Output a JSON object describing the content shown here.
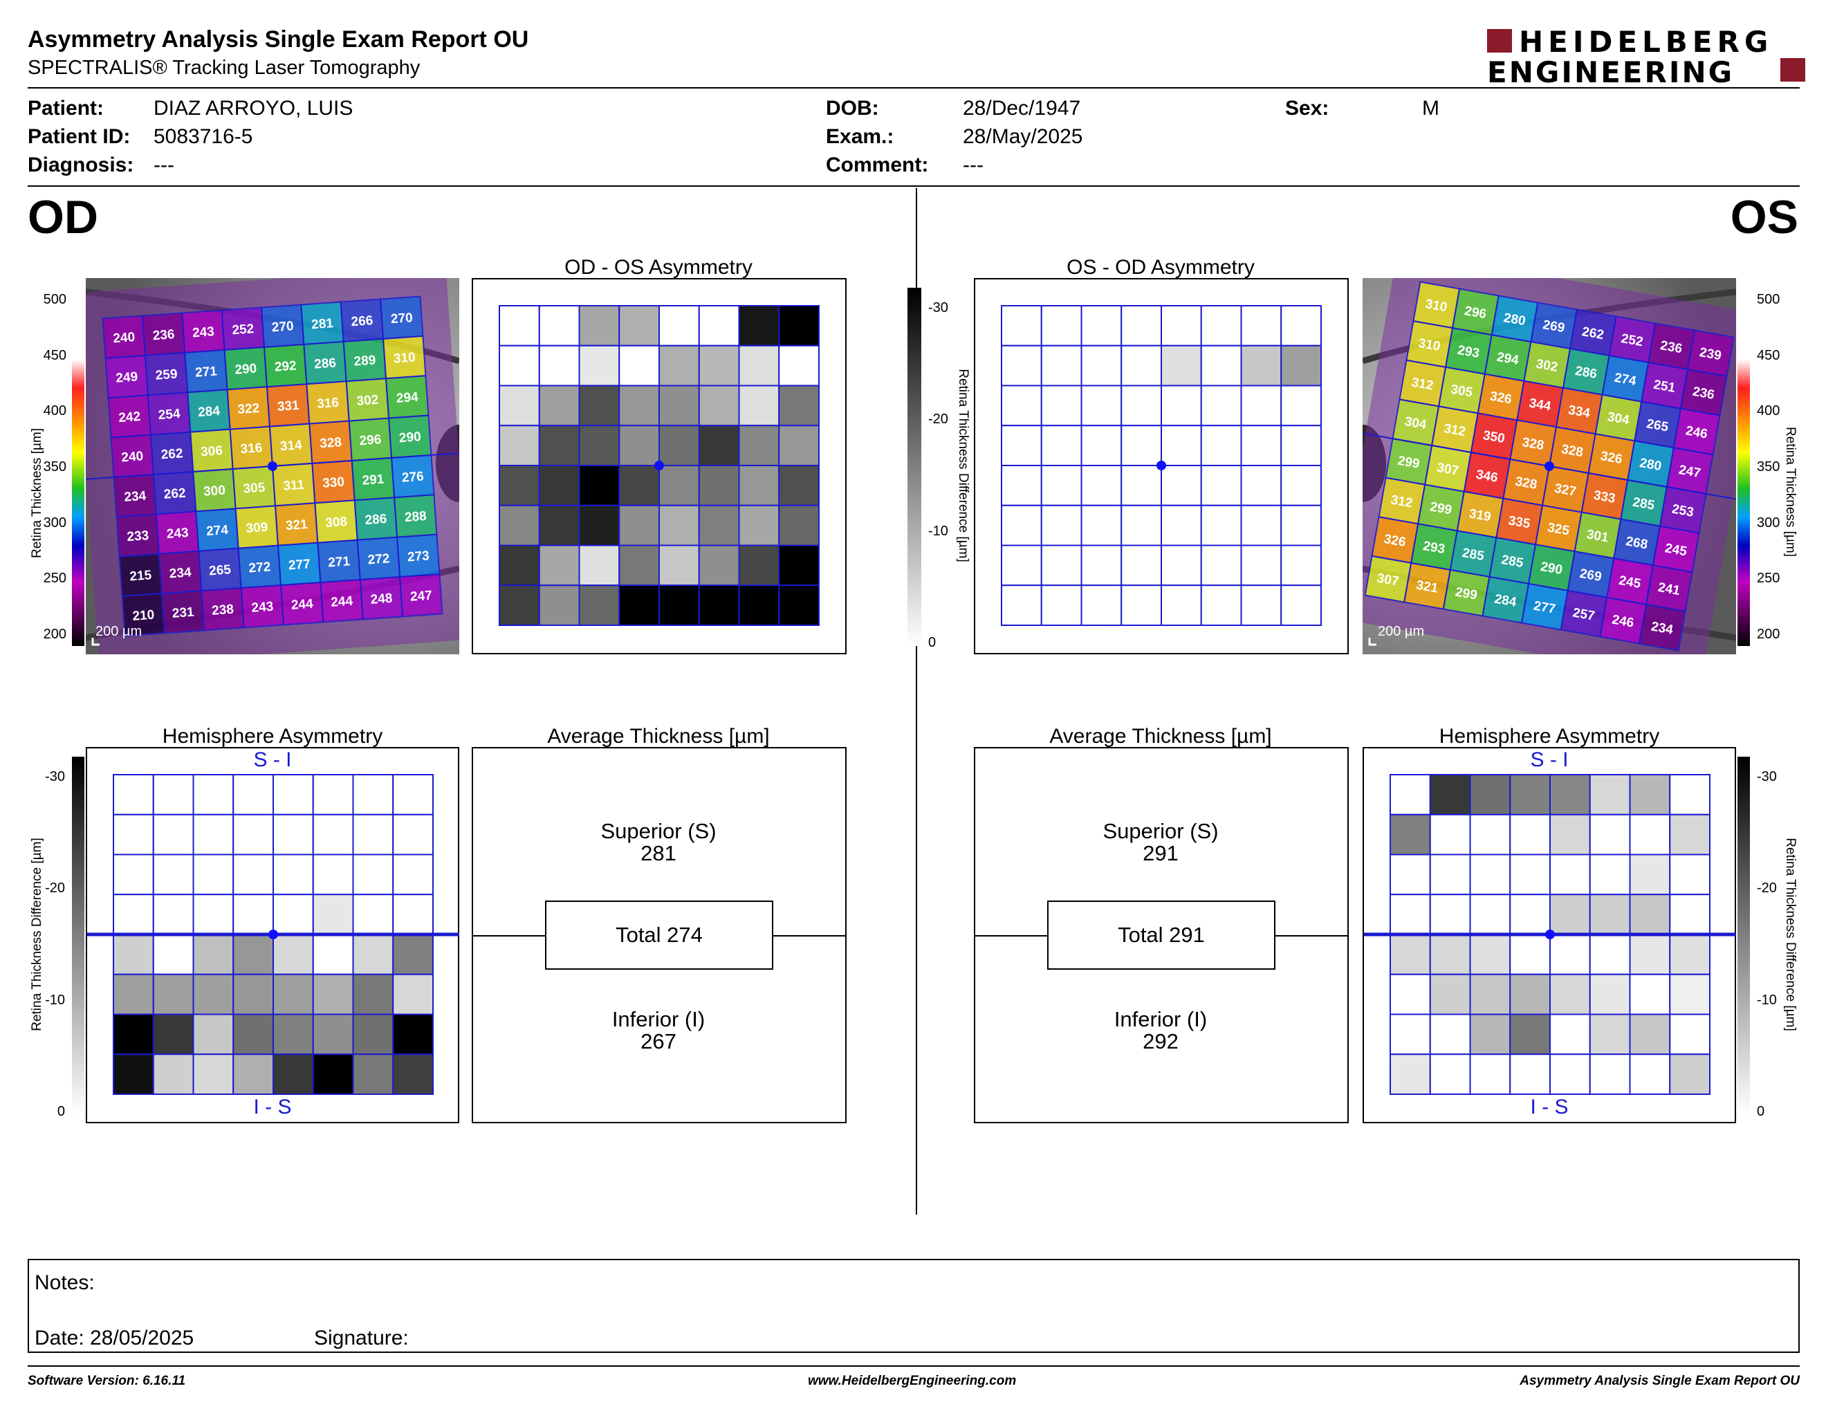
{
  "header": {
    "title": "Asymmetry Analysis Single Exam Report OU",
    "subtitle": "SPECTRALIS® Tracking Laser Tomography",
    "logo_line1": "HEIDELBERG",
    "logo_line2": "ENGINEERING"
  },
  "patient": {
    "patient_label": "Patient:",
    "patient_value": "DIAZ ARROYO, LUIS",
    "id_label": "Patient ID:",
    "id_value": "5083716-5",
    "diagnosis_label": "Diagnosis:",
    "diagnosis_value": "---",
    "dob_label": "DOB:",
    "dob_value": "28/Dec/1947",
    "exam_label": "Exam.:",
    "exam_value": "28/May/2025",
    "comment_label": "Comment:",
    "comment_value": "---",
    "sex_label": "Sex:",
    "sex_value": "M"
  },
  "od": {
    "label": "OD",
    "scale_label": "200 µm",
    "thickness_axis": {
      "label": "Retina  Thickness [µm]",
      "ticks": [
        "500",
        "450",
        "400",
        "350",
        "300",
        "250",
        "200"
      ]
    },
    "thickness_grid": [
      [
        240,
        236,
        243,
        252,
        270,
        281,
        266,
        270
      ],
      [
        249,
        259,
        271,
        290,
        292,
        286,
        289,
        310
      ],
      [
        242,
        254,
        284,
        322,
        331,
        316,
        302,
        294
      ],
      [
        240,
        262,
        306,
        316,
        314,
        328,
        296,
        290
      ],
      [
        234,
        262,
        300,
        305,
        311,
        330,
        291,
        276
      ],
      [
        233,
        243,
        274,
        309,
        321,
        308,
        286,
        288
      ],
      [
        215,
        234,
        265,
        272,
        277,
        271,
        272,
        273
      ],
      [
        210,
        231,
        238,
        243,
        244,
        244,
        248,
        247
      ]
    ],
    "asym_title": "OD - OS Asymmetry",
    "asym_grid": [
      [
        0,
        0,
        11,
        10,
        0,
        0,
        29,
        32
      ],
      [
        0,
        0,
        3,
        0,
        10,
        9,
        4,
        0
      ],
      [
        4,
        12,
        22,
        13,
        14,
        10,
        4,
        17
      ],
      [
        7,
        22,
        21,
        14,
        18,
        25,
        15,
        13
      ],
      [
        22,
        25,
        32,
        23,
        15,
        18,
        13,
        22
      ],
      [
        15,
        25,
        28,
        14,
        10,
        16,
        11,
        19
      ],
      [
        25,
        11,
        4,
        17,
        7,
        14,
        23,
        32
      ],
      [
        24,
        14,
        19,
        32,
        32,
        32,
        32,
        32
      ]
    ],
    "diff_axis": {
      "label": "Retina Thickness Difference [µm]",
      "ticks": [
        "-30",
        "-20",
        "-10",
        "0"
      ]
    },
    "hemi_title": "Hemisphere Asymmetry",
    "hemi_top": "S - I",
    "hemi_bottom": "I - S",
    "hemi_grid": [
      [
        0,
        0,
        0,
        0,
        0,
        0,
        0,
        0
      ],
      [
        0,
        0,
        0,
        0,
        0,
        0,
        0,
        0
      ],
      [
        0,
        0,
        0,
        0,
        0,
        0,
        0,
        0
      ],
      [
        0,
        0,
        0,
        0,
        0,
        3,
        0,
        0
      ],
      [
        6,
        0,
        8,
        13,
        5,
        0,
        5,
        16
      ],
      [
        12,
        12,
        12,
        13,
        12,
        10,
        17,
        5
      ],
      [
        32,
        25,
        7,
        18,
        16,
        14,
        18,
        32
      ],
      [
        30,
        6,
        5,
        10,
        25,
        32,
        17,
        24
      ]
    ],
    "avg_title": "Average Thickness [µm]",
    "superior_label": "Superior (S)",
    "superior_value": "281",
    "total_label": "Total 274",
    "inferior_label": "Inferior (I)",
    "inferior_value": "267"
  },
  "os": {
    "label": "OS",
    "scale_label": "200 µm",
    "thickness_axis": {
      "label": "Retina  Thickness [µm]",
      "ticks": [
        "500",
        "450",
        "400",
        "350",
        "300",
        "250",
        "200"
      ]
    },
    "thickness_grid": [
      [
        310,
        296,
        280,
        269,
        262,
        252,
        236,
        239
      ],
      [
        310,
        293,
        294,
        302,
        286,
        274,
        251,
        236
      ],
      [
        312,
        305,
        326,
        344,
        334,
        304,
        265,
        246
      ],
      [
        304,
        312,
        350,
        328,
        328,
        326,
        280,
        247
      ],
      [
        299,
        307,
        346,
        328,
        327,
        333,
        285,
        253
      ],
      [
        312,
        299,
        319,
        335,
        325,
        301,
        268,
        245
      ],
      [
        326,
        293,
        285,
        285,
        290,
        269,
        245,
        241
      ],
      [
        307,
        321,
        299,
        284,
        277,
        257,
        246,
        234
      ]
    ],
    "asym_title": "OS - OD Asymmetry",
    "asym_grid": [
      [
        0,
        0,
        0,
        0,
        0,
        0,
        0,
        0
      ],
      [
        0,
        0,
        0,
        0,
        4,
        0,
        7,
        12
      ],
      [
        0,
        0,
        0,
        0,
        0,
        0,
        0,
        0
      ],
      [
        0,
        0,
        0,
        0,
        0,
        0,
        0,
        0
      ],
      [
        0,
        0,
        0,
        0,
        0,
        0,
        0,
        0
      ],
      [
        0,
        0,
        0,
        0,
        0,
        0,
        0,
        0
      ],
      [
        0,
        0,
        0,
        0,
        0,
        0,
        0,
        0
      ],
      [
        0,
        0,
        0,
        0,
        0,
        0,
        0,
        0
      ]
    ],
    "diff_axis": {
      "label": "Retina Thickness Difference [µm]",
      "ticks": [
        "-30",
        "-20",
        "-10",
        "0"
      ]
    },
    "hemi_title": "Hemisphere Asymmetry",
    "hemi_top": "S - I",
    "hemi_bottom": "I - S",
    "hemi_grid": [
      [
        0,
        25,
        18,
        16,
        15,
        5,
        9,
        0
      ],
      [
        16,
        0,
        0,
        0,
        5,
        0,
        0,
        5
      ],
      [
        0,
        0,
        0,
        0,
        0,
        0,
        3,
        0
      ],
      [
        0,
        0,
        0,
        0,
        6,
        6,
        7,
        0
      ],
      [
        5,
        5,
        4,
        0,
        0,
        0,
        3,
        4
      ],
      [
        0,
        6,
        7,
        9,
        5,
        3,
        0,
        2
      ],
      [
        0,
        0,
        9,
        17,
        0,
        5,
        7,
        0
      ],
      [
        3,
        0,
        0,
        0,
        0,
        0,
        0,
        6
      ]
    ],
    "avg_title": "Average Thickness [µm]",
    "superior_label": "Superior (S)",
    "superior_value": "291",
    "total_label": "Total 291",
    "inferior_label": "Inferior (I)",
    "inferior_value": "292"
  },
  "notes": {
    "notes_label": "Notes:",
    "date_label": "Date: 28/05/2025",
    "signature_label": "Signature:"
  },
  "footer": {
    "version": "Software Version: 6.16.11",
    "url": "www.HeidelbergEngineering.com",
    "report": "Asymmetry Analysis Single Exam Report OU"
  },
  "colors": {
    "grid_blue": "#1a1ad0",
    "logo_red": "#8b1a2a",
    "fovea": "#1010ff"
  }
}
